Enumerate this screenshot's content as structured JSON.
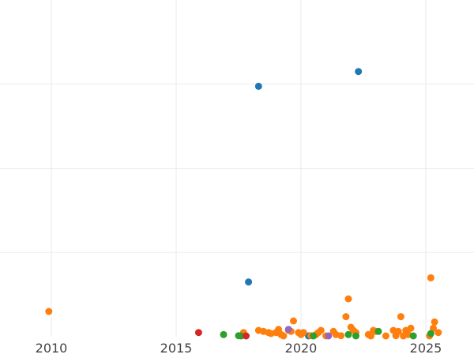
{
  "chart_data": {
    "type": "scatter",
    "title": "",
    "xlabel": "",
    "ylabel": "",
    "xlim": [
      2010.0,
      2026.9
    ],
    "ylim": [
      0,
      16
    ],
    "x_ticks": [
      2010,
      2015,
      2020,
      2025
    ],
    "x_tick_labels": [
      "2010",
      "2015",
      "2020",
      "2025"
    ],
    "y_gridlines": [
      4,
      8,
      12
    ],
    "grid": true,
    "legend": "none",
    "series": [
      {
        "color": "#1f77b4",
        "points": [
          [
            2018.3,
            11.9
          ],
          [
            2022.3,
            12.6
          ],
          [
            2017.9,
            2.6
          ],
          [
            2020.3,
            0.0
          ]
        ]
      },
      {
        "color": "#ff7f0e",
        "points": [
          [
            2009.9,
            1.2
          ],
          [
            2017.7,
            0.2
          ],
          [
            2018.3,
            0.3
          ],
          [
            2018.5,
            0.25
          ],
          [
            2018.7,
            0.2
          ],
          [
            2018.8,
            0.15
          ],
          [
            2019.0,
            0.2
          ],
          [
            2019.1,
            0.35
          ],
          [
            2019.2,
            0.1
          ],
          [
            2019.3,
            0.0
          ],
          [
            2019.5,
            0.3
          ],
          [
            2019.6,
            0.25
          ],
          [
            2019.7,
            0.75
          ],
          [
            2019.9,
            0.2
          ],
          [
            2020.0,
            0.1
          ],
          [
            2020.1,
            0.2
          ],
          [
            2020.4,
            0.05
          ],
          [
            2020.6,
            0.1
          ],
          [
            2020.7,
            0.2
          ],
          [
            2020.8,
            0.3
          ],
          [
            2021.0,
            0.0
          ],
          [
            2021.3,
            0.25
          ],
          [
            2021.4,
            0.1
          ],
          [
            2021.6,
            0.05
          ],
          [
            2021.8,
            0.95
          ],
          [
            2021.9,
            1.8
          ],
          [
            2022.0,
            0.45
          ],
          [
            2022.1,
            0.3
          ],
          [
            2022.2,
            0.2
          ],
          [
            2022.7,
            0.1
          ],
          [
            2022.8,
            0.0
          ],
          [
            2022.9,
            0.3
          ],
          [
            2023.0,
            0.25
          ],
          [
            2023.4,
            0.0
          ],
          [
            2023.7,
            0.3
          ],
          [
            2023.8,
            0.05
          ],
          [
            2023.9,
            0.25
          ],
          [
            2024.0,
            0.95
          ],
          [
            2024.1,
            0.0
          ],
          [
            2024.2,
            0.3
          ],
          [
            2024.3,
            0.1
          ],
          [
            2024.4,
            0.4
          ],
          [
            2025.2,
            2.8
          ],
          [
            2025.3,
            0.4
          ],
          [
            2025.35,
            0.7
          ],
          [
            2025.5,
            0.2
          ],
          [
            2025.15,
            0.0
          ]
        ]
      },
      {
        "color": "#2ca02c",
        "points": [
          [
            2016.9,
            0.1
          ],
          [
            2017.5,
            0.05
          ],
          [
            2017.6,
            0.0
          ],
          [
            2020.5,
            0.0
          ],
          [
            2021.9,
            0.1
          ],
          [
            2022.2,
            0.0
          ],
          [
            2023.1,
            0.25
          ],
          [
            2024.5,
            0.0
          ],
          [
            2025.2,
            0.15
          ]
        ]
      },
      {
        "color": "#d62728",
        "points": [
          [
            2015.9,
            0.2
          ],
          [
            2017.8,
            0.0
          ]
        ]
      },
      {
        "color": "#9467bd",
        "points": [
          [
            2019.5,
            0.35
          ],
          [
            2021.1,
            0.0
          ]
        ]
      }
    ]
  }
}
